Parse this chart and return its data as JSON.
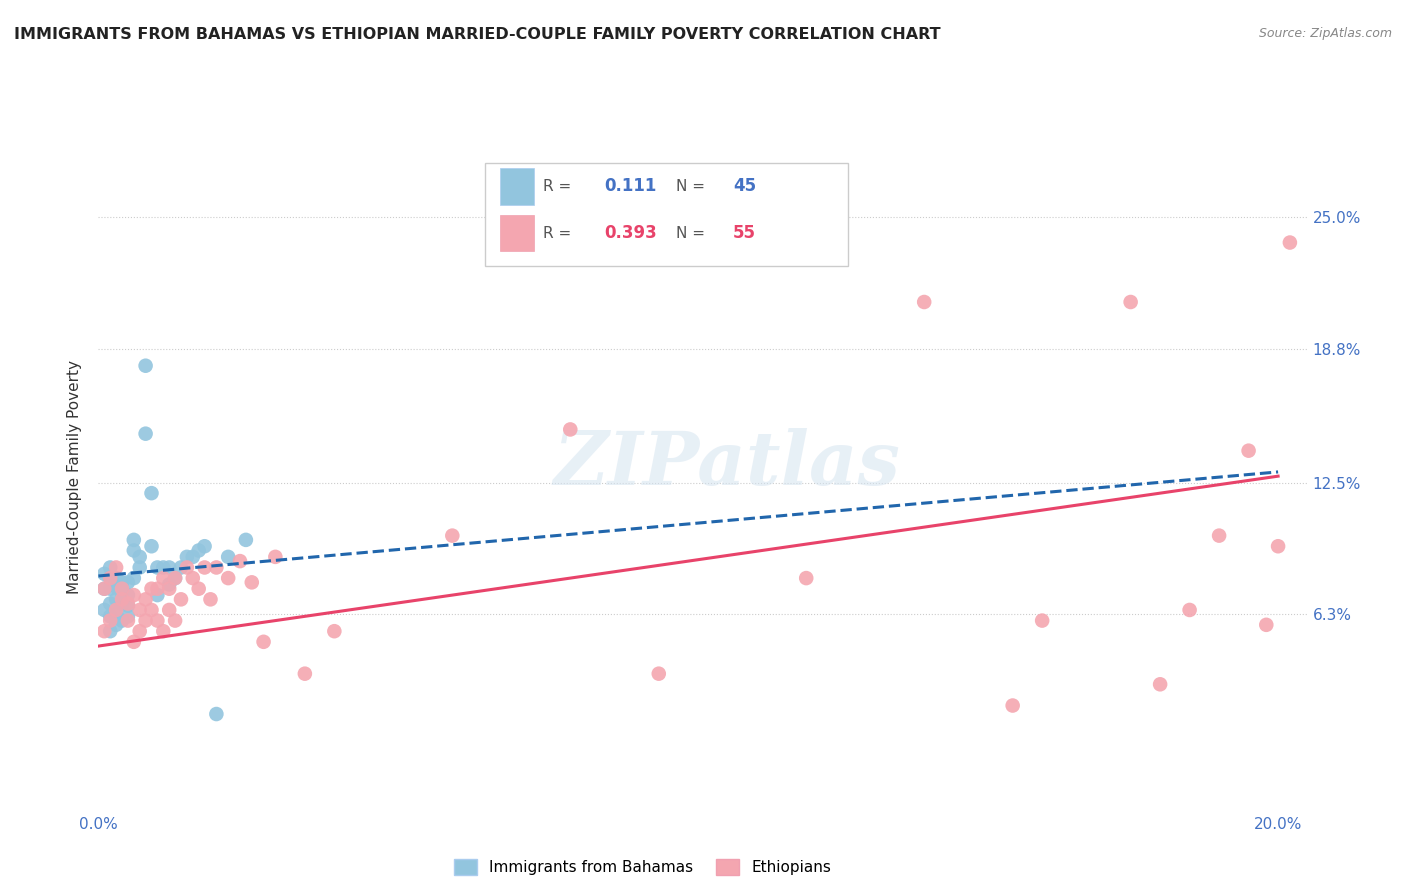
{
  "title": "IMMIGRANTS FROM BAHAMAS VS ETHIOPIAN MARRIED-COUPLE FAMILY POVERTY CORRELATION CHART",
  "source": "Source: ZipAtlas.com",
  "ylabel": "Married-Couple Family Poverty",
  "ytick_labels": [
    "25.0%",
    "18.8%",
    "12.5%",
    "6.3%"
  ],
  "ytick_values": [
    0.25,
    0.188,
    0.125,
    0.063
  ],
  "xlim": [
    0.0,
    0.205
  ],
  "ylim": [
    -0.03,
    0.285
  ],
  "watermark": "ZIPatlas",
  "bahamas_color": "#92c5de",
  "ethiopians_color": "#f4a6b0",
  "line_bahamas_color": "#2166ac",
  "line_ethiopians_color": "#e8436a",
  "bahamas_scatter_x": [
    0.001,
    0.001,
    0.001,
    0.002,
    0.002,
    0.002,
    0.002,
    0.002,
    0.002,
    0.003,
    0.003,
    0.003,
    0.003,
    0.003,
    0.004,
    0.004,
    0.004,
    0.004,
    0.005,
    0.005,
    0.005,
    0.005,
    0.006,
    0.006,
    0.006,
    0.007,
    0.007,
    0.008,
    0.008,
    0.009,
    0.009,
    0.01,
    0.01,
    0.011,
    0.012,
    0.012,
    0.013,
    0.014,
    0.015,
    0.016,
    0.017,
    0.018,
    0.02,
    0.022,
    0.025
  ],
  "bahamas_scatter_y": [
    0.065,
    0.075,
    0.082,
    0.055,
    0.062,
    0.068,
    0.075,
    0.08,
    0.085,
    0.058,
    0.063,
    0.07,
    0.076,
    0.08,
    0.06,
    0.068,
    0.073,
    0.078,
    0.062,
    0.067,
    0.072,
    0.078,
    0.08,
    0.093,
    0.098,
    0.085,
    0.09,
    0.148,
    0.18,
    0.12,
    0.095,
    0.072,
    0.085,
    0.085,
    0.077,
    0.085,
    0.08,
    0.085,
    0.09,
    0.09,
    0.093,
    0.095,
    0.016,
    0.09,
    0.098
  ],
  "ethiopians_scatter_x": [
    0.001,
    0.001,
    0.002,
    0.002,
    0.003,
    0.003,
    0.004,
    0.004,
    0.005,
    0.005,
    0.006,
    0.006,
    0.007,
    0.007,
    0.008,
    0.008,
    0.009,
    0.009,
    0.01,
    0.01,
    0.011,
    0.011,
    0.012,
    0.012,
    0.013,
    0.013,
    0.014,
    0.015,
    0.016,
    0.017,
    0.018,
    0.019,
    0.02,
    0.022,
    0.024,
    0.026,
    0.028,
    0.03,
    0.035,
    0.04,
    0.06,
    0.08,
    0.095,
    0.12,
    0.14,
    0.155,
    0.16,
    0.175,
    0.18,
    0.185,
    0.19,
    0.195,
    0.198,
    0.2,
    0.202
  ],
  "ethiopians_scatter_y": [
    0.055,
    0.075,
    0.06,
    0.08,
    0.065,
    0.085,
    0.07,
    0.075,
    0.06,
    0.068,
    0.05,
    0.072,
    0.065,
    0.055,
    0.07,
    0.06,
    0.075,
    0.065,
    0.06,
    0.075,
    0.055,
    0.08,
    0.065,
    0.075,
    0.06,
    0.08,
    0.07,
    0.085,
    0.08,
    0.075,
    0.085,
    0.07,
    0.085,
    0.08,
    0.088,
    0.078,
    0.05,
    0.09,
    0.035,
    0.055,
    0.1,
    0.15,
    0.035,
    0.08,
    0.21,
    0.02,
    0.06,
    0.21,
    0.03,
    0.065,
    0.1,
    0.14,
    0.058,
    0.095,
    0.238
  ],
  "bahamas_line_x": [
    0.0,
    0.2
  ],
  "bahamas_line_y": [
    0.081,
    0.13
  ],
  "ethiopians_line_x": [
    0.0,
    0.2
  ],
  "ethiopians_line_y": [
    0.048,
    0.128
  ]
}
